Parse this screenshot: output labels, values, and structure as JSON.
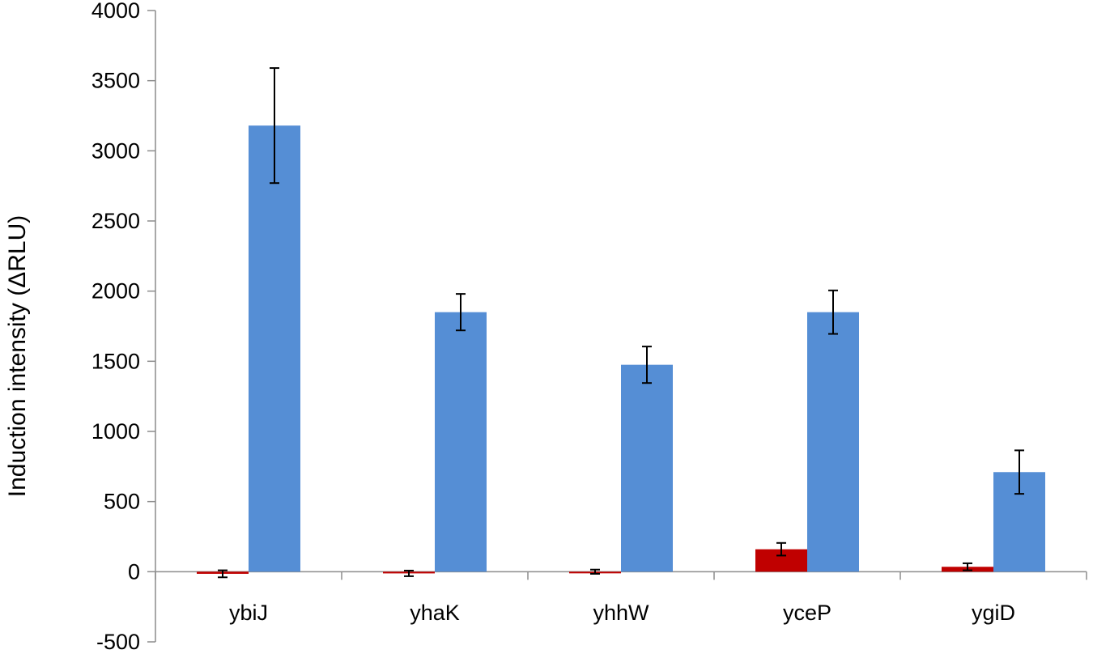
{
  "chart_data": {
    "type": "bar",
    "title": "",
    "xlabel": "",
    "ylabel": "Induction intensity (ΔRLU)",
    "ylim": [
      -500,
      4000
    ],
    "yticks": [
      -500,
      0,
      500,
      1000,
      1500,
      2000,
      2500,
      3000,
      3500,
      4000
    ],
    "ytick_labels": [
      "-500",
      "0",
      "500",
      "1000",
      "1500",
      "2000",
      "2500",
      "3000",
      "3500",
      "4000"
    ],
    "categories": [
      "ybiJ",
      "yhaK",
      "yhhW",
      "yceP",
      "ygiD"
    ],
    "grid": false,
    "legend": "none",
    "series": [
      {
        "color": "#c00000",
        "values": [
          -15,
          -12,
          0,
          160,
          35
        ],
        "error": [
          25,
          20,
          15,
          45,
          25
        ]
      },
      {
        "color": "#558ed5",
        "values": [
          3180,
          1850,
          1475,
          1850,
          710
        ],
        "error": [
          410,
          130,
          130,
          155,
          155
        ]
      }
    ]
  }
}
